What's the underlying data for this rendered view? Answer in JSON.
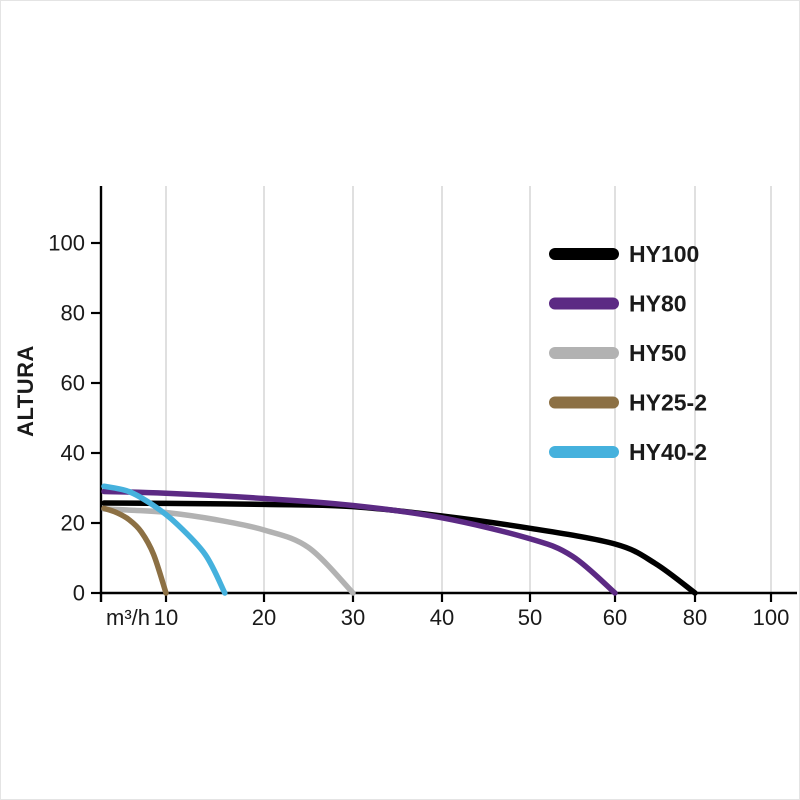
{
  "chart_data": {
    "type": "line",
    "title": "",
    "xlabel": "m³/h",
    "ylabel": "ALTURA",
    "x_ticks": [
      10,
      20,
      30,
      40,
      50,
      60,
      80,
      100
    ],
    "y_ticks": [
      0,
      20,
      40,
      60,
      80,
      100
    ],
    "ylim": [
      0,
      116
    ],
    "grid": "vertical-only",
    "grid_color": "#d9d9d9",
    "axis_color": "#000000",
    "legend_position": "upper right",
    "series": [
      {
        "name": "HY100",
        "color": "#000000",
        "points": [
          [
            0,
            25.7
          ],
          [
            10,
            25.6
          ],
          [
            20,
            25.3
          ],
          [
            30,
            24.7
          ],
          [
            40,
            22.0
          ],
          [
            50,
            18.5
          ],
          [
            60,
            14.0
          ],
          [
            70,
            8.5
          ],
          [
            80,
            0
          ]
        ]
      },
      {
        "name": "HY80",
        "color": "#5c2a84",
        "points": [
          [
            0,
            29.0
          ],
          [
            10,
            28.5
          ],
          [
            20,
            27.0
          ],
          [
            30,
            25.0
          ],
          [
            40,
            21.5
          ],
          [
            50,
            15.5
          ],
          [
            55,
            10.5
          ],
          [
            60,
            0
          ]
        ]
      },
      {
        "name": "HY50",
        "color": "#b2b2b2",
        "points": [
          [
            0,
            24.0
          ],
          [
            5,
            23.6
          ],
          [
            10,
            23.0
          ],
          [
            15,
            21.0
          ],
          [
            20,
            18.0
          ],
          [
            25,
            13.0
          ],
          [
            30,
            0
          ]
        ]
      },
      {
        "name": "HY25-2",
        "color": "#8c7044",
        "points": [
          [
            0,
            24.2
          ],
          [
            2,
            23.0
          ],
          [
            4,
            21.0
          ],
          [
            6,
            17.5
          ],
          [
            8,
            11.0
          ],
          [
            10,
            0
          ]
        ]
      },
      {
        "name": "HY40-2",
        "color": "#45b1dd",
        "points": [
          [
            0,
            30.5
          ],
          [
            4,
            29.0
          ],
          [
            8,
            25.0
          ],
          [
            11,
            20.0
          ],
          [
            14,
            11.0
          ],
          [
            16,
            0
          ]
        ]
      }
    ]
  }
}
